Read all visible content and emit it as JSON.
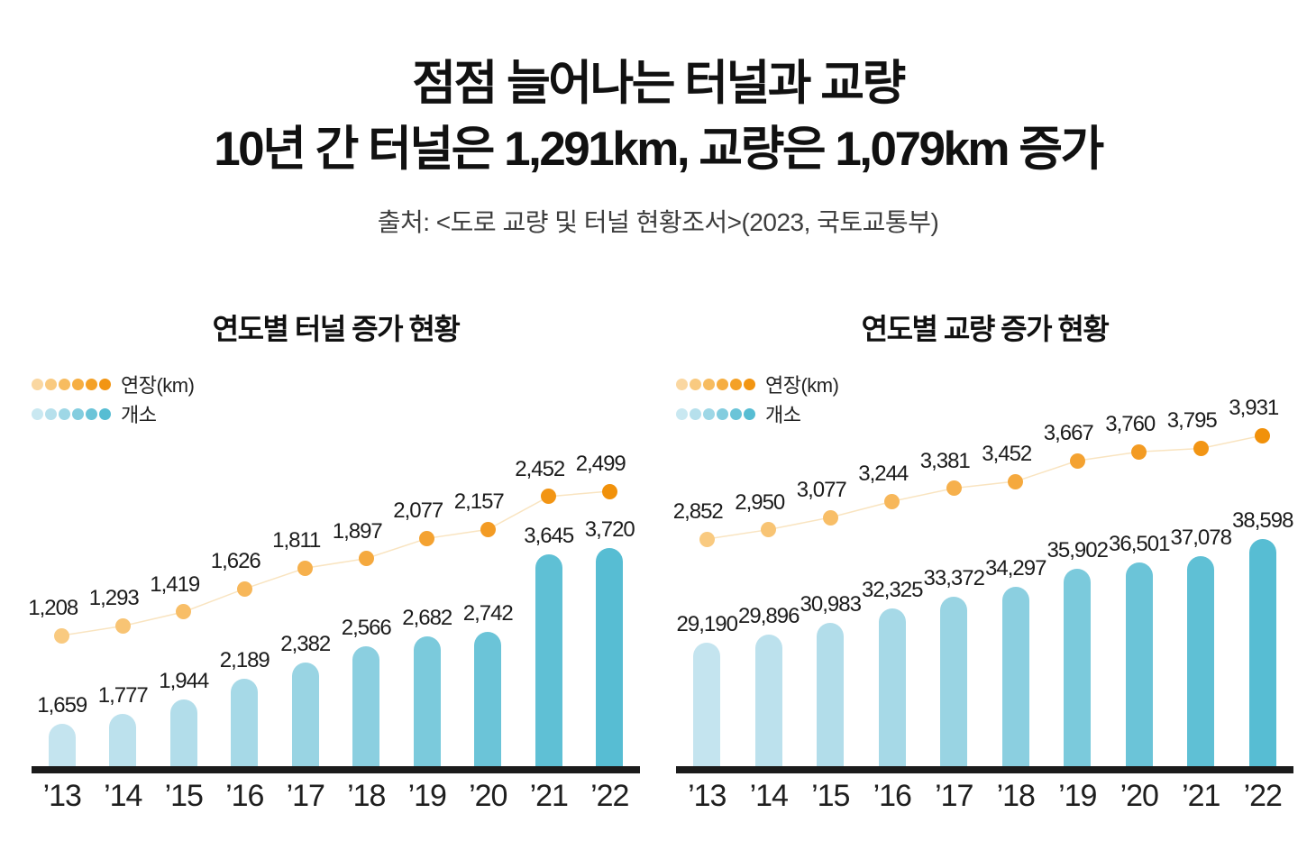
{
  "header": {
    "title_line1": "점점 늘어나는 터널과 교량",
    "title_line2": "10년 간 터널은 1,291km, 교량은 1,079km 증가",
    "source": "출처: <도로 교량 및 터널 현황조서>(2023, 국토교통부)"
  },
  "colors": {
    "background": "#ffffff",
    "title_text": "#111111",
    "source_text": "#3d3d3d",
    "label_text": "#1c1c1c",
    "axis": "#1b1b1b",
    "trend_line": "#F9E4C0",
    "legend_length_gradient": [
      "#FAD7A1",
      "#F9CA80",
      "#F7BC60",
      "#F6AE42",
      "#F4A127",
      "#F29512"
    ],
    "legend_count_gradient": [
      "#C9E8F1",
      "#B6E0EC",
      "#9ED7E6",
      "#83CDDF",
      "#6BC4D8",
      "#57BDD3"
    ],
    "length_dot_gradient": [
      "#F9CA80",
      "#F8C474",
      "#F8BE67",
      "#F7B75A",
      "#F6B04C",
      "#F5A93E",
      "#F4A231",
      "#F39B23",
      "#F29514",
      "#F1910A"
    ],
    "count_bar_gradient": [
      "#C4E4EF",
      "#BCE1ED",
      "#B2DDEA",
      "#A6D9E7",
      "#99D4E3",
      "#8BCFE0",
      "#7BCADC",
      "#6BC4D8",
      "#5FC0D5",
      "#57BDD3"
    ]
  },
  "chart_data": [
    {
      "id": "tunnel",
      "type": "bar",
      "title": "연도별 터널 증가 현황",
      "categories": [
        "’13",
        "’14",
        "’15",
        "’16",
        "’17",
        "’18",
        "’19",
        "’20",
        "’21",
        "’22"
      ],
      "series": [
        {
          "name": "연장(km)",
          "render": "dots-with-line",
          "values": [
            1208,
            1293,
            1419,
            1626,
            1811,
            1897,
            2077,
            2157,
            2452,
            2499
          ]
        },
        {
          "name": "개소",
          "render": "rounded-bars",
          "values": [
            1659,
            1777,
            1944,
            2189,
            2382,
            2566,
            2682,
            2742,
            3645,
            3720
          ]
        }
      ],
      "value_labels": "all",
      "legend_position": "top-left",
      "grid": false
    },
    {
      "id": "bridge",
      "type": "bar",
      "title": "연도별 교량 증가 현황",
      "categories": [
        "’13",
        "’14",
        "’15",
        "’16",
        "’17",
        "’18",
        "’19",
        "’20",
        "’21",
        "’22"
      ],
      "series": [
        {
          "name": "연장(km)",
          "render": "dots-with-line",
          "values": [
            2852,
            2950,
            3077,
            3244,
            3381,
            3452,
            3667,
            3760,
            3795,
            3931
          ]
        },
        {
          "name": "개소",
          "render": "rounded-bars",
          "values": [
            29190,
            29896,
            30983,
            32325,
            33372,
            34297,
            35902,
            36501,
            37078,
            38598
          ]
        }
      ],
      "value_labels": "all",
      "legend_position": "top-left",
      "grid": false
    }
  ]
}
